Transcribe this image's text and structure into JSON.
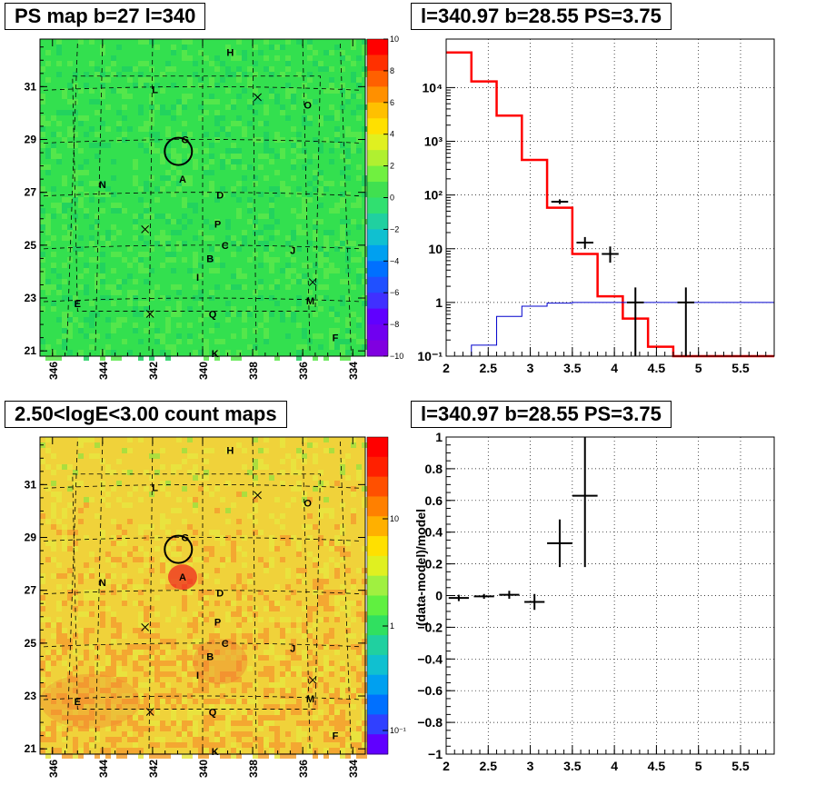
{
  "titles": {
    "ps_map": "PS map b=27 l=340",
    "spectrum": "l=340.97 b=28.55 PS=3.75",
    "count_map": "2.50<logE<3.00 count maps",
    "residual": "l=340.97 b=28.55 PS=3.75"
  },
  "colors": {
    "ps_map_bg": "#33e04f",
    "count_map_bg": "#f0d23a",
    "model_line": "#ff0000",
    "background_line": "#0000cc",
    "data_points": "#000000"
  },
  "map_axes": {
    "x_ticks": [
      "346",
      "344",
      "342",
      "340",
      "338",
      "336",
      "334"
    ],
    "y_ticks": [
      "31",
      "29",
      "27",
      "25",
      "23",
      "21"
    ]
  },
  "source_labels": [
    "H",
    "L",
    "O",
    "G",
    "A",
    "N",
    "D",
    "P",
    "C",
    "J",
    "B",
    "I",
    "E",
    "Q",
    "M",
    "F",
    "K"
  ],
  "colorbar_linear": {
    "ticks": [
      "10",
      "8",
      "6",
      "4",
      "2",
      "0",
      "−2",
      "−4",
      "−6",
      "−8",
      "−10"
    ],
    "range": [
      -10,
      10
    ]
  },
  "colorbar_log": {
    "ticks": [
      "10",
      "1",
      "10⁻¹"
    ]
  },
  "chart_data": [
    {
      "type": "heatmap",
      "title": "PS map b=27 l=340",
      "xlabel": "",
      "ylabel": "",
      "xlim": [
        346.5,
        333.5
      ],
      "ylim": [
        20.8,
        32.8
      ],
      "zlim": [
        -10,
        10
      ],
      "circle_center": {
        "l": 340.97,
        "b": 28.55
      }
    },
    {
      "type": "line",
      "title": "l=340.97 b=28.55 PS=3.75",
      "xlabel": "",
      "ylabel": "",
      "xlim": [
        2,
        5.9
      ],
      "ylim": [
        0.1,
        80000
      ],
      "log_y": true,
      "grid": true,
      "x_ticks": [
        "2",
        "2.5",
        "3",
        "3.5",
        "4",
        "4.5",
        "5",
        "5.5"
      ],
      "y_ticks": [
        "10⁻¹",
        "1",
        "10",
        "10²",
        "10³",
        "10⁴"
      ],
      "series": [
        {
          "style": "step",
          "edges": [
            2,
            2.3,
            2.6,
            2.9,
            3.2,
            3.5,
            3.8,
            4.1,
            4.4,
            4.7,
            5.0,
            5.3,
            5.6,
            5.9
          ],
          "values": [
            45000,
            13000,
            3000,
            450,
            58,
            8,
            1.3,
            0.5,
            0.15,
            0.1,
            0.1,
            0.1,
            0.1
          ]
        },
        {
          "style": "step",
          "edges": [
            2,
            2.3,
            2.6,
            2.9,
            3.2,
            3.5,
            3.8,
            4.1,
            4.4,
            4.7,
            5.0,
            5.3,
            5.6,
            5.9
          ],
          "values": [
            0.1,
            0.16,
            0.55,
            0.85,
            0.97,
            1.0,
            1.0,
            1.0,
            1.0,
            1.0,
            1.0,
            1.0,
            1.0
          ]
        },
        {
          "style": "points",
          "points": [
            {
              "x": 3.35,
              "y": 75,
              "xerr": 0.1,
              "ylo": 68,
              "yhi": 83
            },
            {
              "x": 3.65,
              "y": 13,
              "xerr": 0.1,
              "ylo": 10,
              "yhi": 16.5
            },
            {
              "x": 3.95,
              "y": 8,
              "xerr": 0.1,
              "ylo": 5.5,
              "yhi": 11
            },
            {
              "x": 4.25,
              "y": 1,
              "xerr": 0.1,
              "ylo": 0.1,
              "yhi": 1.9
            },
            {
              "x": 4.85,
              "y": 1,
              "xerr": 0.1,
              "ylo": 0.1,
              "yhi": 1.9
            }
          ]
        }
      ]
    },
    {
      "type": "heatmap",
      "title": "2.50<logE<3.00 count maps",
      "xlabel": "",
      "ylabel": "",
      "xlim": [
        346.5,
        333.5
      ],
      "ylim": [
        20.8,
        32.8
      ],
      "log_z": true,
      "circle_center": {
        "l": 340.97,
        "b": 28.55
      }
    },
    {
      "type": "scatter",
      "title": "l=340.97 b=28.55 PS=3.75",
      "xlabel": "",
      "ylabel": "(data-model)/model",
      "xlim": [
        2,
        5.9
      ],
      "ylim": [
        -1,
        1
      ],
      "grid": true,
      "x_ticks": [
        "2",
        "2.5",
        "3",
        "3.5",
        "4",
        "4.5",
        "5",
        "5.5"
      ],
      "y_ticks": [
        "−1",
        "−0.8",
        "−0.6",
        "−0.4",
        "−0.2",
        "0",
        "0.2",
        "0.4",
        "0.6",
        "0.8",
        "1"
      ],
      "points": [
        {
          "x": 2.15,
          "y": -0.015,
          "xerr": 0.12,
          "ylo": -0.035,
          "yhi": 0.005
        },
        {
          "x": 2.45,
          "y": -0.005,
          "xerr": 0.12,
          "ylo": -0.02,
          "yhi": 0.01
        },
        {
          "x": 2.75,
          "y": 0.005,
          "xerr": 0.12,
          "ylo": -0.02,
          "yhi": 0.03
        },
        {
          "x": 3.05,
          "y": -0.04,
          "xerr": 0.12,
          "ylo": -0.09,
          "yhi": 0.01
        },
        {
          "x": 3.35,
          "y": 0.33,
          "xerr": 0.15,
          "ylo": 0.18,
          "yhi": 0.48
        },
        {
          "x": 3.65,
          "y": 0.63,
          "xerr": 0.15,
          "ylo": 0.18,
          "yhi": 1.0
        }
      ]
    }
  ]
}
